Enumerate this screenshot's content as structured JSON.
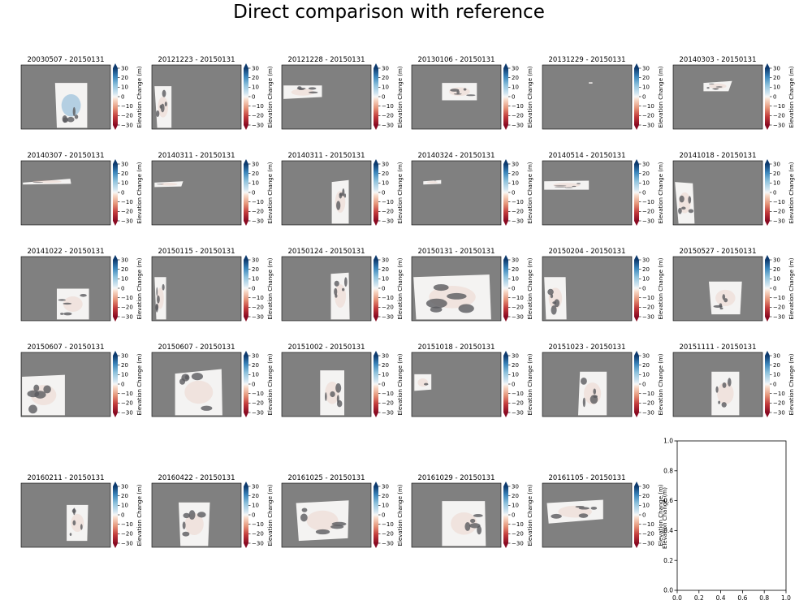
{
  "figure": {
    "title": "Direct comparison with reference"
  },
  "colorbar": {
    "label": "Elevation Change (m)",
    "ticks": [
      30,
      20,
      10,
      0,
      -10,
      -20,
      -30
    ],
    "tick_labels": [
      "30",
      "20",
      "10",
      "0",
      "−10",
      "−20",
      "−30"
    ],
    "vmin": -30,
    "vmax": 30,
    "extend": "both",
    "colormap": "RdBu"
  },
  "colors": {
    "background_fill": "#808080",
    "data_fill": "#f4f3f2",
    "dark_patch": "#5a5a5e",
    "blue_tint": "#7fb0d6",
    "red_tint": "#e5b2a3"
  },
  "chart_data": [
    {
      "type": "heatmap",
      "title": "20030507 - 20150131"
    },
    {
      "type": "heatmap",
      "title": "20121223 - 20150131"
    },
    {
      "type": "heatmap",
      "title": "20121228 - 20150131"
    },
    {
      "type": "heatmap",
      "title": "20130106 - 20150131"
    },
    {
      "type": "heatmap",
      "title": "20131229 - 20150131"
    },
    {
      "type": "heatmap",
      "title": "20140303 - 20150131"
    },
    {
      "type": "heatmap",
      "title": "20140307 - 20150131"
    },
    {
      "type": "heatmap",
      "title": "20140311 - 20150131"
    },
    {
      "type": "heatmap",
      "title": "20140311 - 20150131"
    },
    {
      "type": "heatmap",
      "title": "20140324 - 20150131"
    },
    {
      "type": "heatmap",
      "title": "20140514 - 20150131"
    },
    {
      "type": "heatmap",
      "title": "20141018 - 20150131"
    },
    {
      "type": "heatmap",
      "title": "20141022 - 20150131"
    },
    {
      "type": "heatmap",
      "title": "20150115 - 20150131"
    },
    {
      "type": "heatmap",
      "title": "20150124 - 20150131"
    },
    {
      "type": "heatmap",
      "title": "20150131 - 20150131"
    },
    {
      "type": "heatmap",
      "title": "20150204 - 20150131"
    },
    {
      "type": "heatmap",
      "title": "20150527 - 20150131"
    },
    {
      "type": "heatmap",
      "title": "20150607 - 20150131"
    },
    {
      "type": "heatmap",
      "title": "20150607 - 20150131"
    },
    {
      "type": "heatmap",
      "title": "20151002 - 20150131"
    },
    {
      "type": "heatmap",
      "title": "20151018 - 20150131"
    },
    {
      "type": "heatmap",
      "title": "20151023 - 20150131"
    },
    {
      "type": "heatmap",
      "title": "20151111 - 20150131"
    },
    {
      "type": "heatmap",
      "title": "20160211 - 20150131"
    },
    {
      "type": "heatmap",
      "title": "20160422 - 20150131"
    },
    {
      "type": "heatmap",
      "title": "20161025 - 20150131"
    },
    {
      "type": "heatmap",
      "title": "20161029 - 20150131"
    },
    {
      "type": "heatmap",
      "title": "20161105 - 20150131"
    },
    {
      "type": "empty",
      "xlim": [
        0.0,
        1.0
      ],
      "ylim": [
        0.0,
        1.0
      ],
      "xticks": [
        0.0,
        0.2,
        0.4,
        0.6,
        0.8,
        1.0
      ],
      "yticks": [
        0.0,
        0.2,
        0.4,
        0.6,
        0.8,
        1.0
      ],
      "xtick_labels": [
        "0.0",
        "0.2",
        "0.4",
        "0.6",
        "0.8",
        "1.0"
      ],
      "ytick_labels": [
        "0.0",
        "0.2",
        "0.4",
        "0.6",
        "0.8",
        "1.0"
      ]
    }
  ]
}
